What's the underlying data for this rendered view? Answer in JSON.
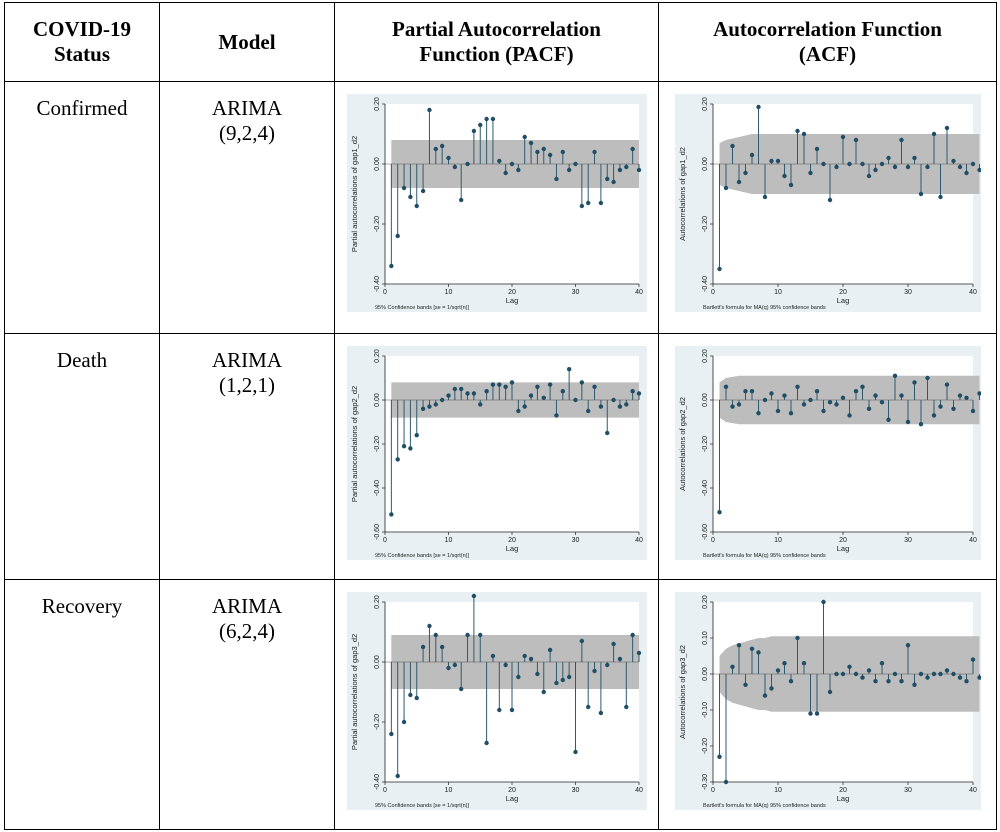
{
  "table": {
    "headers": [
      "COVID-19 Status",
      "Model",
      "Partial Autocorrelation Function (PACF)",
      "Autocorrelation Function (ACF)"
    ],
    "header_lines": [
      [
        "COVID-19",
        "Status"
      ],
      [
        "Model"
      ],
      [
        "Partial Autocorrelation",
        "Function (PACF)"
      ],
      [
        "Autocorrelation Function",
        "(ACF)"
      ]
    ],
    "rows": [
      {
        "status": "Confirmed",
        "model_line1": "ARIMA",
        "model_line2": "(9,2,4)"
      },
      {
        "status": "Death",
        "model_line1": "ARIMA",
        "model_line2": "(1,2,1)"
      },
      {
        "status": "Recovery",
        "model_line1": "ARIMA",
        "model_line2": "(6,2,4)"
      }
    ]
  },
  "chart_data": [
    {
      "type": "bar",
      "kind": "PACF",
      "row": 0,
      "ylabel": "Partial autocorrelations of gap1_d2",
      "xlabel": "Lag",
      "note": "95% Confidence bands [se = 1/sqrt(n)]",
      "ylim": [
        -0.4,
        0.2
      ],
      "yticks": [
        "-0.40",
        "-0.20",
        "0.00",
        "0.20"
      ],
      "ytick_values": [
        -0.4,
        -0.2,
        0,
        0.2
      ],
      "xlim": [
        0,
        40
      ],
      "xticks": [
        "0",
        "10",
        "20",
        "30",
        "40"
      ],
      "xtick_values": [
        0,
        10,
        20,
        30,
        40
      ],
      "band": {
        "lower": [
          -0.08
        ],
        "upper": [
          0.08
        ]
      },
      "values": [
        -0.34,
        -0.24,
        -0.08,
        -0.11,
        -0.14,
        -0.09,
        0.18,
        0.05,
        0.06,
        0.02,
        -0.01,
        -0.12,
        0.0,
        0.11,
        0.13,
        0.15,
        0.15,
        0.01,
        -0.03,
        0.0,
        -0.02,
        0.09,
        0.07,
        0.04,
        0.05,
        0.03,
        -0.05,
        0.04,
        -0.02,
        0.0,
        -0.14,
        -0.13,
        0.04,
        -0.13,
        -0.05,
        -0.06,
        -0.02,
        -0.01,
        0.05,
        -0.02
      ]
    },
    {
      "type": "bar",
      "kind": "ACF",
      "row": 0,
      "ylabel": "Autocorrelations of gap1_d2",
      "xlabel": "Lag",
      "note": "Bartlett's formula for MA(q) 95% confidence bands",
      "ylim": [
        -0.4,
        0.2
      ],
      "yticks": [
        "-0.40",
        "-0.20",
        "0.00",
        "0.20"
      ],
      "ytick_values": [
        -0.4,
        -0.2,
        0,
        0.2
      ],
      "xlim": [
        0,
        40
      ],
      "xticks": [
        "0",
        "10",
        "20",
        "30",
        "40"
      ],
      "xtick_values": [
        0,
        10,
        20,
        30,
        40
      ],
      "band": {
        "lower": [
          -0.07,
          -0.08,
          -0.085,
          -0.09,
          -0.095,
          -0.1
        ],
        "upper": [
          0.07,
          0.08,
          0.085,
          0.09,
          0.095,
          0.1
        ]
      },
      "values": [
        -0.35,
        -0.08,
        0.06,
        -0.06,
        -0.03,
        0.03,
        0.19,
        -0.11,
        0.01,
        0.01,
        -0.04,
        -0.07,
        0.11,
        0.1,
        -0.03,
        0.05,
        0.0,
        -0.12,
        -0.01,
        0.09,
        0.0,
        0.08,
        0.0,
        -0.04,
        -0.02,
        0.0,
        0.02,
        -0.01,
        0.08,
        -0.01,
        0.02,
        -0.1,
        -0.01,
        0.1,
        -0.11,
        0.12,
        0.01,
        -0.01,
        -0.03,
        0.0,
        -0.02
      ]
    },
    {
      "type": "bar",
      "kind": "PACF",
      "row": 1,
      "ylabel": "Partial autocorrelations of gap2_d2",
      "xlabel": "Lag",
      "note": "95% Confidence bands [se = 1/sqrt(n)]",
      "ylim": [
        -0.6,
        0.2
      ],
      "yticks": [
        "-0.60",
        "-0.40",
        "-0.20",
        "0.00",
        "0.20"
      ],
      "ytick_values": [
        -0.6,
        -0.4,
        -0.2,
        0,
        0.2
      ],
      "xlim": [
        0,
        40
      ],
      "xticks": [
        "0",
        "10",
        "20",
        "30",
        "40"
      ],
      "xtick_values": [
        0,
        10,
        20,
        30,
        40
      ],
      "band": {
        "lower": [
          -0.08
        ],
        "upper": [
          0.08
        ]
      },
      "values": [
        -0.52,
        -0.27,
        -0.21,
        -0.22,
        -0.16,
        -0.04,
        -0.03,
        -0.02,
        0.0,
        0.02,
        0.05,
        0.05,
        0.03,
        0.03,
        -0.02,
        0.04,
        0.07,
        0.07,
        0.06,
        0.08,
        -0.05,
        -0.03,
        0.02,
        0.06,
        0.01,
        0.07,
        -0.07,
        0.04,
        0.14,
        0.0,
        0.08,
        -0.05,
        0.06,
        -0.03,
        -0.15,
        0.0,
        -0.03,
        -0.02,
        0.04,
        0.03
      ]
    },
    {
      "type": "bar",
      "kind": "ACF",
      "row": 1,
      "ylabel": "Autocorrelations of gap2_d2",
      "xlabel": "Lag",
      "note": "Bartlett's formula for MA(q) 95% confidence bands",
      "ylim": [
        -0.6,
        0.2
      ],
      "yticks": [
        "-0.60",
        "-0.40",
        "-0.20",
        "0.00",
        "0.20"
      ],
      "ytick_values": [
        -0.6,
        -0.4,
        -0.2,
        0,
        0.2
      ],
      "xlim": [
        0,
        40
      ],
      "xticks": [
        "0",
        "10",
        "20",
        "30",
        "40"
      ],
      "xtick_values": [
        0,
        10,
        20,
        30,
        40
      ],
      "band": {
        "lower": [
          -0.08,
          -0.1,
          -0.105,
          -0.11,
          -0.11
        ],
        "upper": [
          0.08,
          0.1,
          0.105,
          0.11,
          0.11
        ]
      },
      "values": [
        -0.51,
        0.06,
        -0.03,
        -0.02,
        0.04,
        0.04,
        -0.06,
        0.0,
        0.03,
        -0.05,
        0.02,
        -0.06,
        0.06,
        -0.02,
        0.0,
        0.04,
        -0.05,
        -0.01,
        -0.02,
        0.01,
        -0.07,
        0.04,
        0.06,
        -0.04,
        0.02,
        -0.01,
        -0.09,
        0.11,
        0.02,
        -0.1,
        0.08,
        -0.11,
        0.1,
        -0.07,
        -0.03,
        0.07,
        -0.04,
        0.02,
        0.01,
        -0.05,
        0.03
      ]
    },
    {
      "type": "bar",
      "kind": "PACF",
      "row": 2,
      "ylabel": "Partial autocorrelations of gap3_d2",
      "xlabel": "Lag",
      "note": "95% Confidence bands [se = 1/sqrt(n)]",
      "ylim": [
        -0.4,
        0.2
      ],
      "yticks": [
        "-0.40",
        "-0.20",
        "0.00",
        "0.20"
      ],
      "ytick_values": [
        -0.4,
        -0.2,
        0,
        0.2
      ],
      "xlim": [
        0,
        40
      ],
      "xticks": [
        "0",
        "10",
        "20",
        "30",
        "40"
      ],
      "xtick_values": [
        0,
        10,
        20,
        30,
        40
      ],
      "band": {
        "lower": [
          -0.09
        ],
        "upper": [
          0.09
        ]
      },
      "values": [
        -0.24,
        -0.38,
        -0.2,
        -0.11,
        -0.12,
        0.05,
        0.12,
        0.09,
        0.05,
        -0.02,
        -0.01,
        -0.09,
        0.09,
        0.22,
        0.09,
        -0.27,
        0.02,
        -0.16,
        -0.01,
        -0.16,
        -0.05,
        0.02,
        0.01,
        -0.04,
        -0.1,
        0.04,
        -0.07,
        -0.06,
        -0.05,
        -0.3,
        0.07,
        -0.15,
        -0.03,
        -0.17,
        -0.01,
        0.06,
        0.01,
        -0.15,
        0.09,
        0.03
      ]
    },
    {
      "type": "bar",
      "kind": "ACF",
      "row": 2,
      "ylabel": "Autocorrelations of gap3_d2",
      "xlabel": "Lag",
      "note": "Bartlett's formula for MA(q) 95% confidence bands",
      "ylim": [
        -0.3,
        0.2
      ],
      "yticks": [
        "-0.30",
        "-0.20",
        "-0.10",
        "0.00",
        "0.10",
        "0.20"
      ],
      "ytick_values": [
        -0.3,
        -0.2,
        -0.1,
        0,
        0.1,
        0.2
      ],
      "xlim": [
        0,
        40
      ],
      "xticks": [
        "0",
        "10",
        "20",
        "30",
        "40"
      ],
      "xtick_values": [
        0,
        10,
        20,
        30,
        40
      ],
      "band": {
        "lower": [
          -0.05,
          -0.07,
          -0.08,
          -0.085,
          -0.09,
          -0.095,
          -0.1,
          -0.1,
          -0.105,
          -0.105
        ],
        "upper": [
          0.05,
          0.07,
          0.08,
          0.085,
          0.09,
          0.095,
          0.1,
          0.1,
          0.105,
          0.105
        ]
      },
      "values": [
        -0.23,
        -0.3,
        0.02,
        0.08,
        -0.03,
        0.07,
        0.06,
        -0.06,
        -0.04,
        0.01,
        0.03,
        -0.02,
        0.1,
        0.03,
        -0.11,
        -0.11,
        0.2,
        -0.05,
        0.0,
        0.0,
        0.02,
        0.0,
        -0.01,
        0.01,
        -0.02,
        0.03,
        -0.02,
        0.0,
        -0.02,
        0.08,
        -0.03,
        0.0,
        -0.01,
        0.0,
        0.0,
        0.01,
        0.0,
        -0.01,
        -0.02,
        0.04,
        -0.01
      ]
    }
  ]
}
